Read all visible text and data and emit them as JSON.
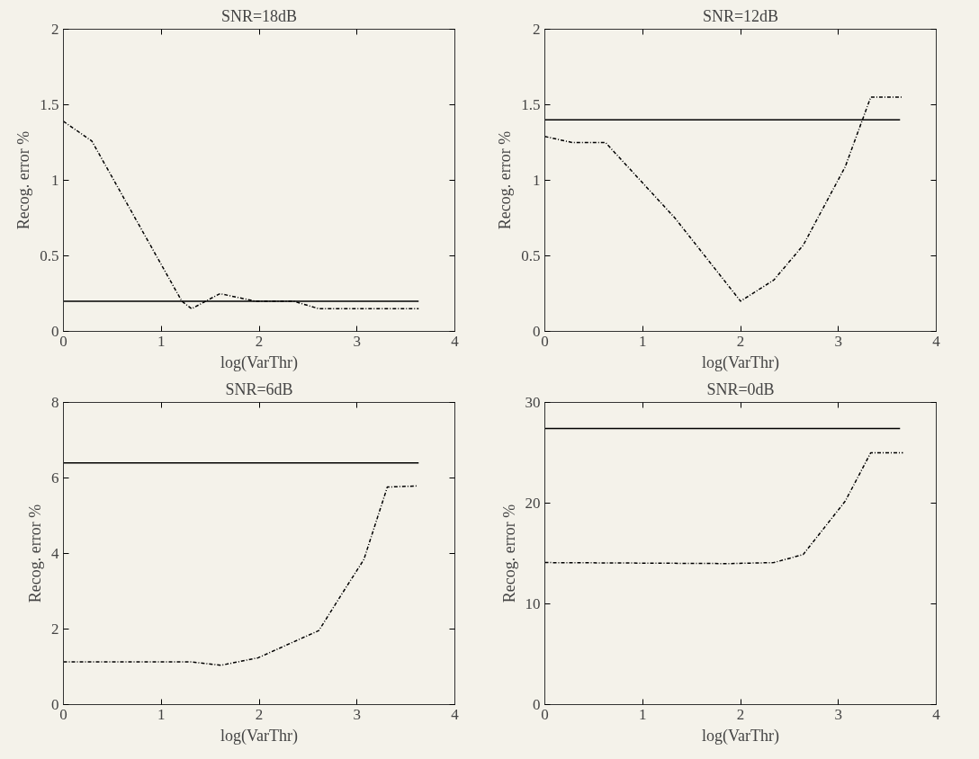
{
  "chart_data": [
    {
      "type": "line",
      "title": "SNR=18dB",
      "xlabel": "log(VarThr)",
      "ylabel": "Recog. error %",
      "xlim": [
        0,
        4
      ],
      "xticks": [
        0,
        1,
        2,
        3,
        4
      ],
      "ylim": [
        0,
        2
      ],
      "yticks": [
        0,
        0.5,
        1,
        1.5,
        2
      ],
      "grid": false,
      "series": [
        {
          "color": "#000000",
          "line_style": "solid",
          "x": [
            0,
            3.63
          ],
          "values": [
            0.2,
            0.2
          ]
        },
        {
          "color": "#000000",
          "line_style": "dashdot",
          "x": [
            0,
            0.29,
            1.21,
            1.31,
            1.6,
            1.96,
            2.35,
            2.61,
            3.63
          ],
          "values": [
            1.39,
            1.26,
            0.2,
            0.15,
            0.25,
            0.2,
            0.2,
            0.15,
            0.15
          ]
        }
      ]
    },
    {
      "type": "line",
      "title": "SNR=12dB",
      "xlabel": "log(VarThr)",
      "ylabel": "Recog. error %",
      "xlim": [
        0,
        4
      ],
      "xticks": [
        0,
        1,
        2,
        3,
        4
      ],
      "ylim": [
        0,
        2
      ],
      "yticks": [
        0,
        0.5,
        1,
        1.5,
        2
      ],
      "grid": false,
      "series": [
        {
          "color": "#000000",
          "line_style": "solid",
          "x": [
            0,
            3.63
          ],
          "values": [
            1.4,
            1.4
          ]
        },
        {
          "color": "#000000",
          "line_style": "dashdot",
          "x": [
            0,
            0.28,
            0.62,
            1.33,
            2.0,
            2.34,
            2.64,
            3.07,
            3.33,
            3.66
          ],
          "values": [
            1.29,
            1.25,
            1.25,
            0.75,
            0.2,
            0.34,
            0.57,
            1.09,
            1.55,
            1.55
          ]
        }
      ]
    },
    {
      "type": "line",
      "title": "SNR=6dB",
      "xlabel": "log(VarThr)",
      "ylabel": "Recog. error %",
      "xlim": [
        0,
        4
      ],
      "xticks": [
        0,
        1,
        2,
        3,
        4
      ],
      "ylim": [
        0,
        8
      ],
      "yticks": [
        0,
        2,
        4,
        6,
        8
      ],
      "grid": false,
      "series": [
        {
          "color": "#000000",
          "line_style": "solid",
          "x": [
            0,
            3.63
          ],
          "values": [
            6.4,
            6.4
          ]
        },
        {
          "color": "#000000",
          "line_style": "dashdot",
          "x": [
            0,
            1.31,
            1.61,
            1.99,
            2.61,
            2.87,
            3.07,
            3.31,
            3.62
          ],
          "values": [
            1.13,
            1.13,
            1.04,
            1.24,
            1.96,
            3.03,
            3.84,
            5.76,
            5.79
          ]
        }
      ]
    },
    {
      "type": "line",
      "title": "SNR=0dB",
      "xlabel": "log(VarThr)",
      "ylabel": "Recog. error %",
      "xlim": [
        0,
        4
      ],
      "xticks": [
        0,
        1,
        2,
        3,
        4
      ],
      "ylim": [
        0,
        30
      ],
      "yticks": [
        0,
        10,
        20,
        30
      ],
      "grid": false,
      "series": [
        {
          "color": "#000000",
          "line_style": "solid",
          "x": [
            0,
            3.63
          ],
          "values": [
            27.4,
            27.4
          ]
        },
        {
          "color": "#000000",
          "line_style": "dashdot",
          "x": [
            0,
            1.89,
            2.34,
            2.64,
            3.07,
            3.33,
            3.66
          ],
          "values": [
            14.1,
            14.0,
            14.1,
            14.9,
            20.2,
            25.0,
            25.0
          ]
        }
      ]
    }
  ]
}
